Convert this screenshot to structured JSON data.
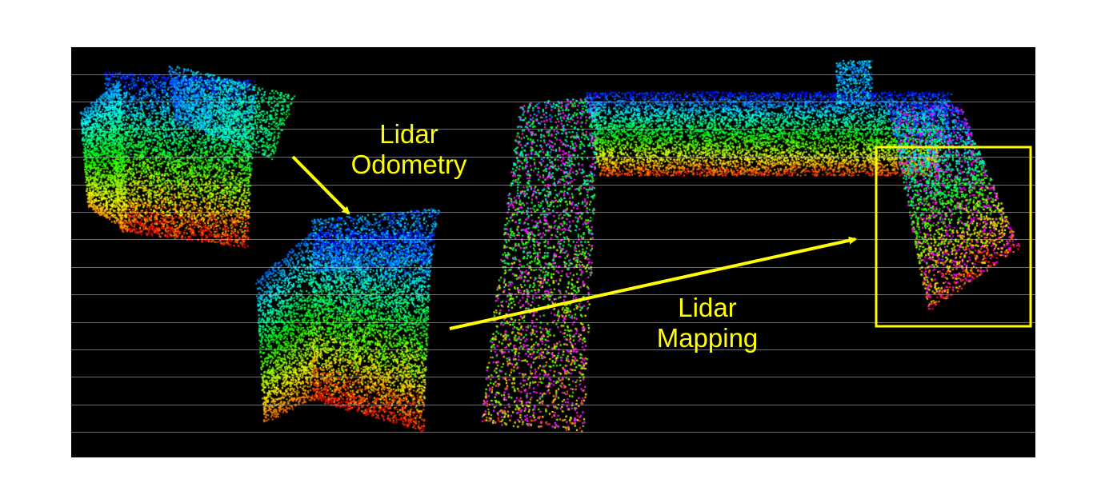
{
  "figure": {
    "labels": {
      "odometry": {
        "line1": "Lidar",
        "line2": "Odometry"
      },
      "mapping": {
        "line1": "Lidar",
        "line2": "Mapping"
      }
    },
    "annotation_color": "#ffff00",
    "background_color": "#000000",
    "gridline_color": "#c8c8c8"
  }
}
